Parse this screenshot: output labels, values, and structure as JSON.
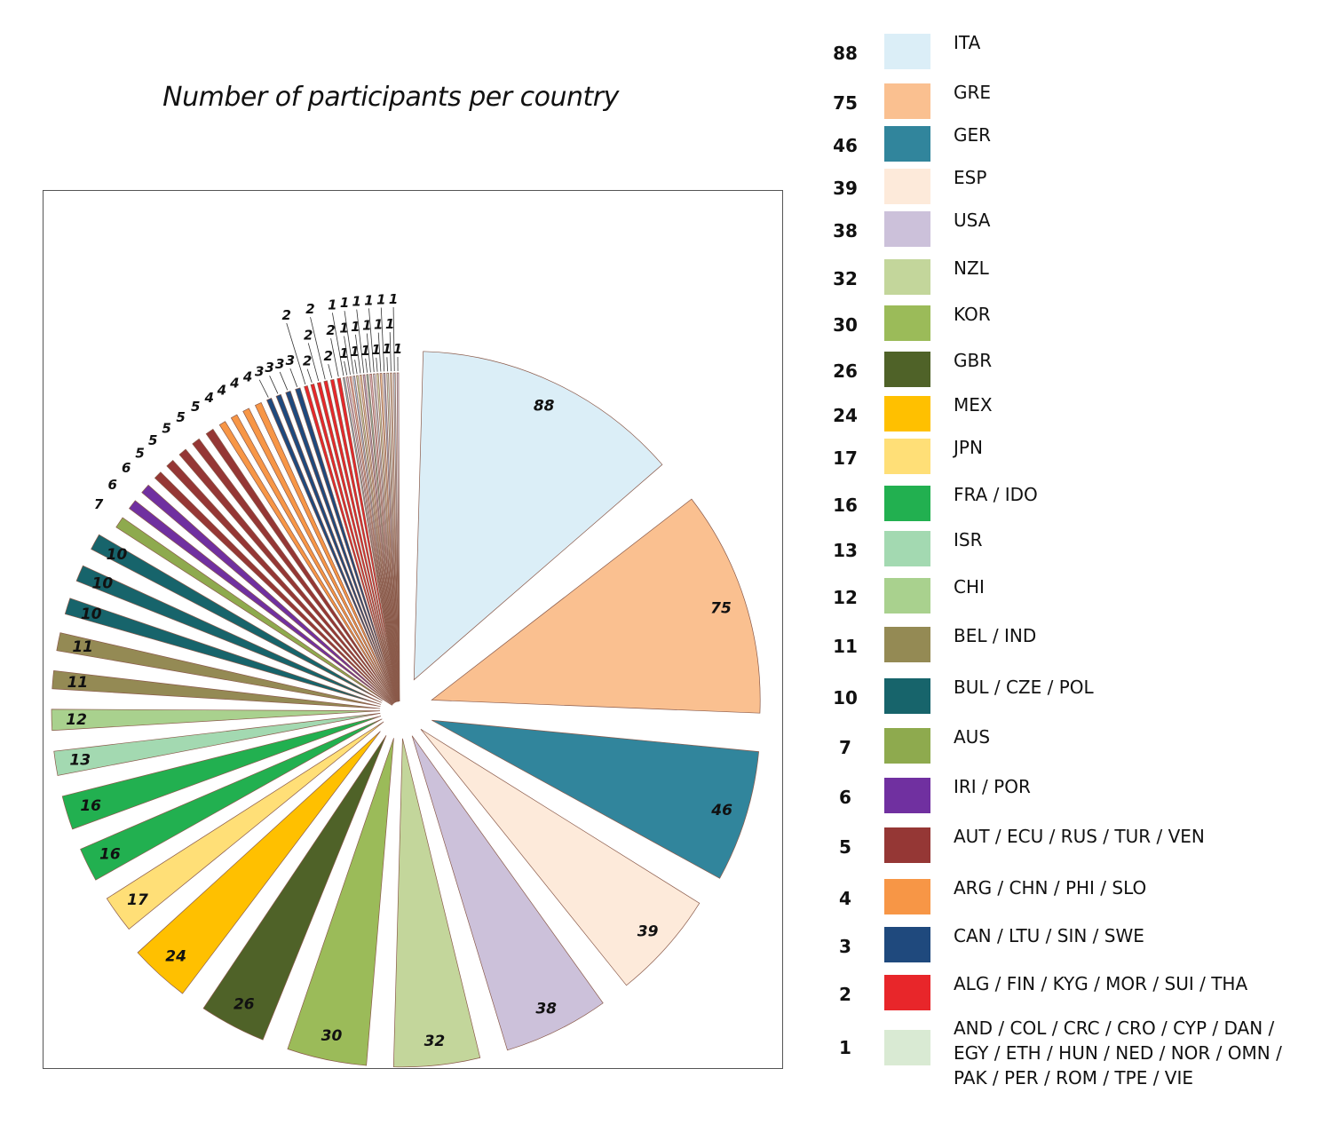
{
  "title": "Number of participants per country",
  "chart_data": {
    "type": "pie",
    "title": "Number of participants per country",
    "legend_position": "right",
    "slices": [
      {
        "group": "ITA",
        "value": 88,
        "color": "#dbeef7"
      },
      {
        "group": "GRE",
        "value": 75,
        "color": "#fac090"
      },
      {
        "group": "GER",
        "value": 46,
        "color": "#31859c"
      },
      {
        "group": "ESP",
        "value": 39,
        "color": "#fdeada"
      },
      {
        "group": "USA",
        "value": 38,
        "color": "#ccc1da"
      },
      {
        "group": "NZL",
        "value": 32,
        "color": "#c3d69b"
      },
      {
        "group": "KOR",
        "value": 30,
        "color": "#9bbb59"
      },
      {
        "group": "GBR",
        "value": 26,
        "color": "#4f6228"
      },
      {
        "group": "MEX",
        "value": 24,
        "color": "#ffc000"
      },
      {
        "group": "JPN",
        "value": 17,
        "color": "#ffdf77"
      },
      {
        "group": "FRA / IDO",
        "value": 16,
        "color": "#22b050"
      },
      {
        "group": "FRA / IDO",
        "value": 16,
        "color": "#22b050"
      },
      {
        "group": "ISR",
        "value": 13,
        "color": "#a3d9b1"
      },
      {
        "group": "CHI",
        "value": 12,
        "color": "#a9d18e"
      },
      {
        "group": "BEL / IND",
        "value": 11,
        "color": "#948a54"
      },
      {
        "group": "BEL / IND",
        "value": 11,
        "color": "#948a54"
      },
      {
        "group": "BUL / CZE / POL",
        "value": 10,
        "color": "#17646b"
      },
      {
        "group": "BUL / CZE / POL",
        "value": 10,
        "color": "#17646b"
      },
      {
        "group": "BUL / CZE / POL",
        "value": 10,
        "color": "#17646b"
      },
      {
        "group": "AUS",
        "value": 7,
        "color": "#8eaa4e"
      },
      {
        "group": "IRI / POR",
        "value": 6,
        "color": "#7030a0"
      },
      {
        "group": "IRI / POR",
        "value": 6,
        "color": "#7030a0"
      },
      {
        "group": "AUT / ECU / RUS / TUR / VEN",
        "value": 5,
        "color": "#953735"
      },
      {
        "group": "AUT / ECU / RUS / TUR / VEN",
        "value": 5,
        "color": "#953735"
      },
      {
        "group": "AUT / ECU / RUS / TUR / VEN",
        "value": 5,
        "color": "#953735"
      },
      {
        "group": "AUT / ECU / RUS / TUR / VEN",
        "value": 5,
        "color": "#953735"
      },
      {
        "group": "AUT / ECU / RUS / TUR / VEN",
        "value": 5,
        "color": "#953735"
      },
      {
        "group": "ARG / CHN / PHI / SLO",
        "value": 4,
        "color": "#f79646"
      },
      {
        "group": "ARG / CHN / PHI / SLO",
        "value": 4,
        "color": "#f79646"
      },
      {
        "group": "ARG / CHN / PHI / SLO",
        "value": 4,
        "color": "#f79646"
      },
      {
        "group": "ARG / CHN / PHI / SLO",
        "value": 4,
        "color": "#f79646"
      },
      {
        "group": "CAN / LTU / SIN / SWE",
        "value": 3,
        "color": "#1f497d"
      },
      {
        "group": "CAN / LTU / SIN / SWE",
        "value": 3,
        "color": "#1f497d"
      },
      {
        "group": "CAN / LTU / SIN / SWE",
        "value": 3,
        "color": "#1f497d"
      },
      {
        "group": "CAN / LTU / SIN / SWE",
        "value": 3,
        "color": "#1f497d"
      },
      {
        "group": "ALG / FIN / KYG / MOR / SUI / THA",
        "value": 2,
        "color": "#e8262a"
      },
      {
        "group": "ALG / FIN / KYG / MOR / SUI / THA",
        "value": 2,
        "color": "#e8262a"
      },
      {
        "group": "ALG / FIN / KYG / MOR / SUI / THA",
        "value": 2,
        "color": "#e8262a"
      },
      {
        "group": "ALG / FIN / KYG / MOR / SUI / THA",
        "value": 2,
        "color": "#e8262a"
      },
      {
        "group": "ALG / FIN / KYG / MOR / SUI / THA",
        "value": 2,
        "color": "#e8262a"
      },
      {
        "group": "ALG / FIN / KYG / MOR / SUI / THA",
        "value": 2,
        "color": "#e8262a"
      },
      {
        "group": "AND / COL / CRC / CRO / CYP / DAN / EGY / ETH / HUN / NED / NOR / OMN / PAK / PER / ROM / TPE / VIE",
        "value": 1,
        "color": "#93c4d5"
      },
      {
        "group": "AND / COL / CRC / CRO / CYP / DAN / EGY / ETH / HUN / NED / NOR / OMN / PAK / PER / ROM / TPE / VIE",
        "value": 1,
        "color": "#d8c4e0"
      },
      {
        "group": "AND / COL / CRC / CRO / CYP / DAN / EGY / ETH / HUN / NED / NOR / OMN / PAK / PER / ROM / TPE / VIE",
        "value": 1,
        "color": "#f4b5a6"
      },
      {
        "group": "AND / COL / CRC / CRO / CYP / DAN / EGY / ETH / HUN / NED / NOR / OMN / PAK / PER / ROM / TPE / VIE",
        "value": 1,
        "color": "#a6c8e8"
      },
      {
        "group": "AND / COL / CRC / CRO / CYP / DAN / EGY / ETH / HUN / NED / NOR / OMN / PAK / PER / ROM / TPE / VIE",
        "value": 1,
        "color": "#c9dfa8"
      },
      {
        "group": "AND / COL / CRC / CRO / CYP / DAN / EGY / ETH / HUN / NED / NOR / OMN / PAK / PER / ROM / TPE / VIE",
        "value": 1,
        "color": "#f2d2a9"
      },
      {
        "group": "AND / COL / CRC / CRO / CYP / DAN / EGY / ETH / HUN / NED / NOR / OMN / PAK / PER / ROM / TPE / VIE",
        "value": 1,
        "color": "#b7a5cc"
      },
      {
        "group": "AND / COL / CRC / CRO / CYP / DAN / EGY / ETH / HUN / NED / NOR / OMN / PAK / PER / ROM / TPE / VIE",
        "value": 1,
        "color": "#8fbfb0"
      },
      {
        "group": "AND / COL / CRC / CRO / CYP / DAN / EGY / ETH / HUN / NED / NOR / OMN / PAK / PER / ROM / TPE / VIE",
        "value": 1,
        "color": "#e7b9c4"
      },
      {
        "group": "AND / COL / CRC / CRO / CYP / DAN / EGY / ETH / HUN / NED / NOR / OMN / PAK / PER / ROM / TPE / VIE",
        "value": 1,
        "color": "#c4d7ea"
      },
      {
        "group": "AND / COL / CRC / CRO / CYP / DAN / EGY / ETH / HUN / NED / NOR / OMN / PAK / PER / ROM / TPE / VIE",
        "value": 1,
        "color": "#d9e6b5"
      },
      {
        "group": "AND / COL / CRC / CRO / CYP / DAN / EGY / ETH / HUN / NED / NOR / OMN / PAK / PER / ROM / TPE / VIE",
        "value": 1,
        "color": "#f5c99e"
      },
      {
        "group": "AND / COL / CRC / CRO / CYP / DAN / EGY / ETH / HUN / NED / NOR / OMN / PAK / PER / ROM / TPE / VIE",
        "value": 1,
        "color": "#a9b8d9"
      },
      {
        "group": "AND / COL / CRC / CRO / CYP / DAN / EGY / ETH / HUN / NED / NOR / OMN / PAK / PER / ROM / TPE / VIE",
        "value": 1,
        "color": "#cfe3cf"
      },
      {
        "group": "AND / COL / CRC / CRO / CYP / DAN / EGY / ETH / HUN / NED / NOR / OMN / PAK / PER / ROM / TPE / VIE",
        "value": 1,
        "color": "#e3d4b9"
      },
      {
        "group": "AND / COL / CRC / CRO / CYP / DAN / EGY / ETH / HUN / NED / NOR / OMN / PAK / PER / ROM / TPE / VIE",
        "value": 1,
        "color": "#b9c9d3"
      },
      {
        "group": "AND / COL / CRC / CRO / CYP / DAN / EGY / ETH / HUN / NED / NOR / OMN / PAK / PER / ROM / TPE / VIE",
        "value": 1,
        "color": "#d6cfe6"
      }
    ],
    "legend": [
      {
        "count": "88",
        "label": "ITA",
        "color": "#dbeef7"
      },
      {
        "count": "75",
        "label": "GRE",
        "color": "#fac090"
      },
      {
        "count": "46",
        "label": "GER",
        "color": "#31859c"
      },
      {
        "count": "39",
        "label": "ESP",
        "color": "#fdeada"
      },
      {
        "count": "38",
        "label": "USA",
        "color": "#ccc1da"
      },
      {
        "count": "32",
        "label": "NZL",
        "color": "#c3d69b"
      },
      {
        "count": "30",
        "label": "KOR",
        "color": "#9bbb59"
      },
      {
        "count": "26",
        "label": "GBR",
        "color": "#4f6228"
      },
      {
        "count": "24",
        "label": "MEX",
        "color": "#ffc000"
      },
      {
        "count": "17",
        "label": "JPN",
        "color": "#ffdf77"
      },
      {
        "count": "16",
        "label": "FRA / IDO",
        "color": "#22b050"
      },
      {
        "count": "13",
        "label": "ISR",
        "color": "#a3d9b1"
      },
      {
        "count": "12",
        "label": "CHI",
        "color": "#a9d18e"
      },
      {
        "count": "11",
        "label": "BEL / IND",
        "color": "#948a54"
      },
      {
        "count": "10",
        "label": "BUL / CZE / POL",
        "color": "#17646b"
      },
      {
        "count": "7",
        "label": "AUS",
        "color": "#8eaa4e"
      },
      {
        "count": "6",
        "label": "IRI / POR",
        "color": "#7030a0"
      },
      {
        "count": "5",
        "label": "AUT / ECU / RUS / TUR / VEN",
        "color": "#953735"
      },
      {
        "count": "4",
        "label": "ARG / CHN / PHI / SLO",
        "color": "#f79646"
      },
      {
        "count": "3",
        "label": "CAN / LTU / SIN / SWE",
        "color": "#1f497d"
      },
      {
        "count": "2",
        "label": "ALG / FIN / KYG / MOR / SUI / THA",
        "color": "#e8262a"
      },
      {
        "count": "1",
        "label": "AND / COL / CRC / CRO / CYP / DAN / EGY / ETH / HUN / NED / NOR / OMN / PAK / PER / ROM / TPE / VIE",
        "color": "#d9ead3"
      }
    ]
  }
}
